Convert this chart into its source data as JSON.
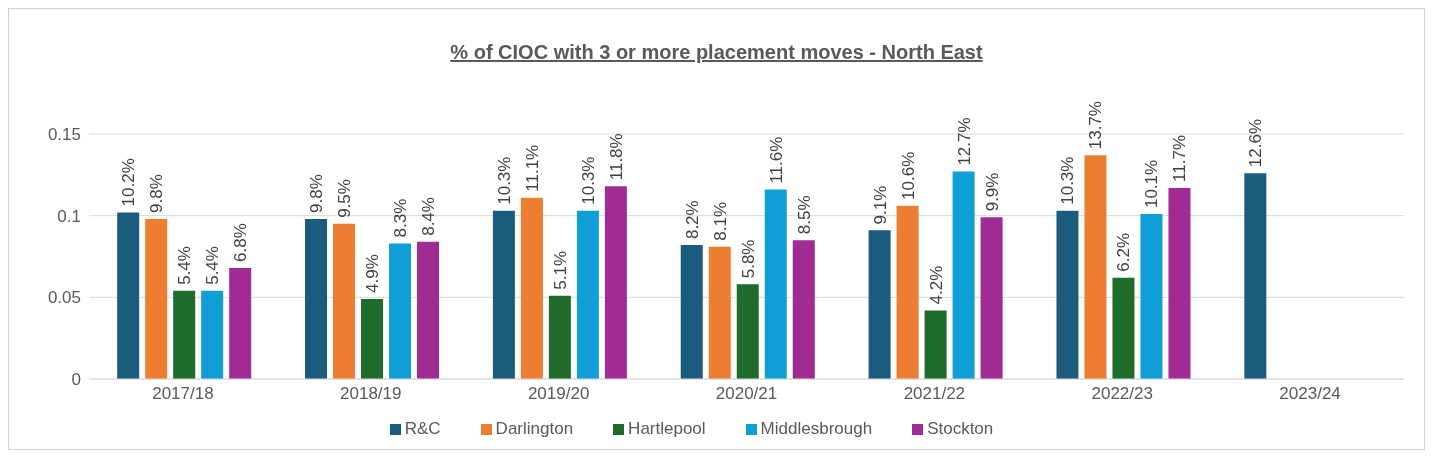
{
  "chart_data": {
    "type": "bar",
    "title": "% of CIOC with 3 or more placement moves - North East",
    "categories": [
      "2017/18",
      "2018/19",
      "2019/20",
      "2020/21",
      "2021/22",
      "2022/23",
      "2023/24"
    ],
    "series": [
      {
        "name": "R&C",
        "color": "#1b5b7d",
        "values": [
          0.102,
          0.098,
          0.103,
          0.082,
          0.091,
          0.103,
          0.126
        ],
        "value_labels": [
          "10.2%",
          "9.8%",
          "10.3%",
          "8.2%",
          "9.1%",
          "10.3%",
          "12.6%"
        ]
      },
      {
        "name": "Darlington",
        "color": "#ed7d31",
        "values": [
          0.098,
          0.095,
          0.111,
          0.081,
          0.106,
          0.137,
          null
        ],
        "value_labels": [
          "9.8%",
          "9.5%",
          "11.1%",
          "8.1%",
          "10.6%",
          "13.7%",
          null
        ]
      },
      {
        "name": "Hartlepool",
        "color": "#1e6b2c",
        "values": [
          0.054,
          0.049,
          0.051,
          0.058,
          0.042,
          0.062,
          null
        ],
        "value_labels": [
          "5.4%",
          "4.9%",
          "5.1%",
          "5.8%",
          "4.2%",
          "6.2%",
          null
        ]
      },
      {
        "name": "Middlesbrough",
        "color": "#0f9ed5",
        "values": [
          0.054,
          0.083,
          0.103,
          0.116,
          0.127,
          0.101,
          null
        ],
        "value_labels": [
          "5.4%",
          "8.3%",
          "10.3%",
          "11.6%",
          "12.7%",
          "10.1%",
          null
        ]
      },
      {
        "name": "Stockton",
        "color": "#a02b93",
        "values": [
          0.068,
          0.084,
          0.118,
          0.085,
          0.099,
          0.117,
          null
        ],
        "value_labels": [
          "6.8%",
          "8.4%",
          "11.8%",
          "8.5%",
          "9.9%",
          "11.7%",
          null
        ]
      }
    ],
    "ylim": [
      0,
      0.15
    ],
    "yticks": [
      0,
      0.05,
      0.1,
      0.15
    ],
    "grid": "y",
    "legend": "bottom"
  }
}
